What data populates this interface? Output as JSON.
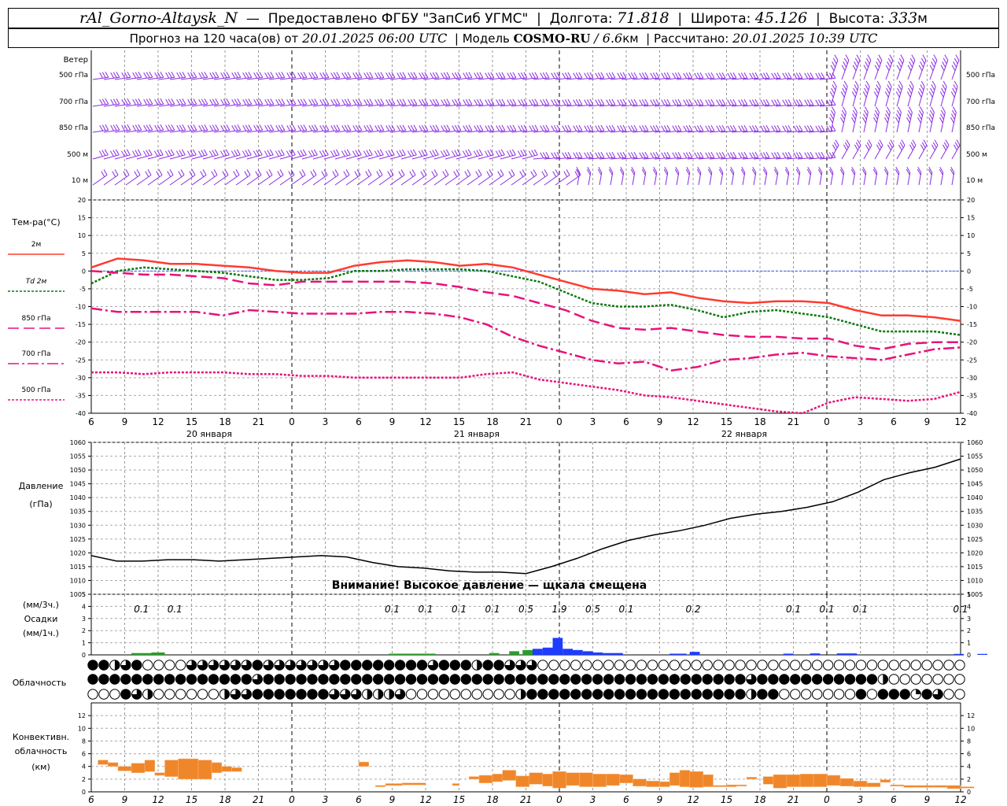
{
  "header": {
    "station": "rAl_Gorno-Altaysk_N",
    "provider": "Предоставлено ФГБУ \"ЗапСиб УГМС\"",
    "lon_label": "Долгота:",
    "lon_value": "71.818",
    "lat_label": "Широта:",
    "lat_value": "45.126",
    "alt_label": "Высота:",
    "alt_value": "333",
    "alt_unit": "м",
    "forecast_prefix": "Прогноз на 120 часа(ов) от",
    "forecast_time": "20.01.2025 06:00 UTC",
    "model_label": "Модель",
    "model_name": "COSMO-RU",
    "model_res": "/ 6.6",
    "model_res_unit": "км",
    "calc_label": "Рассчитано:",
    "calc_time": "20.01.2025 10:39 UTC"
  },
  "chart_data": [
    {
      "type": "barbs",
      "title": "Ветер",
      "levels": [
        "500 гПа",
        "700 гПа",
        "850 гПа",
        "500 м",
        "10  м"
      ],
      "color": "#8a2be2"
    },
    {
      "type": "line",
      "title": "Тем-ра(°C)",
      "ylim": [
        -40,
        20
      ],
      "yticks": [
        20,
        15,
        10,
        5,
        0,
        -5,
        -10,
        -15,
        -20,
        -25,
        -30,
        -35,
        -40
      ],
      "x_ticks": [
        "6",
        "9",
        "12",
        "15",
        "18",
        "21",
        "0",
        "3",
        "6",
        "9",
        "12",
        "15",
        "18",
        "21",
        "0",
        "3",
        "6",
        "9",
        "12",
        "15",
        "18",
        "21",
        "0",
        "3",
        "6",
        "9",
        "12"
      ],
      "day_labels": [
        "20 января",
        "21 января",
        "22 января"
      ],
      "series": [
        {
          "name": "2м",
          "color": "#ff3b30",
          "dash": "",
          "width": 2.5,
          "values": [
            1,
            3.5,
            3,
            2,
            2,
            1.5,
            1,
            0,
            -0.5,
            -0.5,
            1.5,
            2.5,
            3,
            2.5,
            1.5,
            2,
            1,
            -1,
            -3,
            -5,
            -5.5,
            -6.5,
            -6,
            -7.5,
            -8.5,
            -9,
            -8.5,
            -8.5,
            -9,
            -11,
            -12.5,
            -12.5,
            -13,
            -14
          ]
        },
        {
          "name": "Td  2м",
          "color": "#0a7a0a",
          "dash": "3,2",
          "width": 2.5,
          "values": [
            -3.5,
            0,
            1,
            0.5,
            0,
            -0.5,
            -1.5,
            -2.5,
            -2.5,
            -2,
            0,
            0,
            0.5,
            0.5,
            0.5,
            0,
            -1.5,
            -3,
            -6,
            -9,
            -10,
            -10,
            -9.5,
            -11,
            -13,
            -11.5,
            -11,
            -12,
            -13,
            -15,
            -17,
            -17,
            -17,
            -18
          ]
        },
        {
          "name": "850 гПа",
          "color": "#e8127a",
          "dash": "14,6",
          "width": 2.5,
          "values": [
            0,
            -0.5,
            -1,
            -1,
            -1.5,
            -2,
            -3.5,
            -4,
            -3,
            -3,
            -3,
            -3,
            -3,
            -3.5,
            -4.5,
            -6,
            -7,
            -9,
            -11,
            -14,
            -16,
            -16.5,
            -16,
            -17,
            -18,
            -18.5,
            -18.5,
            -19,
            -19,
            -21,
            -22,
            -20.5,
            -20,
            -20
          ]
        },
        {
          "name": "700 гПа",
          "color": "#e8127a",
          "dash": "14,4,3,4",
          "width": 2.5,
          "values": [
            -10.5,
            -11.5,
            -11.5,
            -11.5,
            -11.5,
            -12.5,
            -11,
            -11.5,
            -12,
            -12,
            -12,
            -11.5,
            -11.5,
            -12,
            -13,
            -15,
            -18.5,
            -21,
            -23,
            -25,
            -26,
            -25.5,
            -28,
            -27,
            -25,
            -24.5,
            -23.5,
            -23,
            -24,
            -24.5,
            -25,
            -23.5,
            -22,
            -21.5
          ]
        },
        {
          "name": "500 гПа",
          "color": "#e8127a",
          "dash": "3,2",
          "width": 2.5,
          "values": [
            -28.5,
            -28.5,
            -29,
            -28.5,
            -28.5,
            -28.5,
            -29,
            -29,
            -29.5,
            -29.5,
            -30,
            -30,
            -30,
            -30,
            -30,
            -29,
            -28.5,
            -30.5,
            -31.5,
            -32.5,
            -33.5,
            -35,
            -35.5,
            -36.5,
            -37.5,
            -38.5,
            -39.5,
            -40,
            -37,
            -35.5,
            -36,
            -36.5,
            -36,
            -34
          ]
        }
      ]
    },
    {
      "type": "line",
      "title": "Давление",
      "ylabel": "(гПа)",
      "ylim": [
        1005,
        1060
      ],
      "yticks": [
        1060,
        1055,
        1050,
        1045,
        1040,
        1035,
        1030,
        1025,
        1020,
        1015,
        1010,
        1005
      ],
      "series": [
        {
          "name": "",
          "color": "#000000",
          "values": [
            1019,
            1017,
            1017,
            1017.5,
            1017.5,
            1017,
            1017.5,
            1018,
            1018.5,
            1019,
            1018.5,
            1016.5,
            1015,
            1014.5,
            1013.5,
            1013,
            1013,
            1012.5,
            1015,
            1018,
            1021.5,
            1024.5,
            1026.5,
            1028,
            1030,
            1032.5,
            1034,
            1035,
            1036.5,
            1038.5,
            1042,
            1046.5,
            1049,
            1051,
            1054
          ]
        }
      ],
      "annotation": "Внимание! Высокое давление — щкала смещена"
    },
    {
      "type": "bar",
      "title": "Осадки",
      "ylabel_top": "(мм/3ч.)",
      "ylabel_bottom": "(мм/1ч.)",
      "ylim": [
        0,
        5
      ],
      "yticks": [
        5,
        4,
        3,
        2,
        1,
        0
      ],
      "labels": [
        {
          "x": 1.5,
          "text": "0.1"
        },
        {
          "x": 2.5,
          "text": "0.1"
        },
        {
          "x": 9,
          "text": "0.1"
        },
        {
          "x": 10,
          "text": "0.1"
        },
        {
          "x": 11,
          "text": "0.1"
        },
        {
          "x": 12,
          "text": "0.1"
        },
        {
          "x": 13,
          "text": "0.5"
        },
        {
          "x": 14,
          "text": "1.9"
        },
        {
          "x": 15,
          "text": "0.5"
        },
        {
          "x": 16,
          "text": "0.1"
        },
        {
          "x": 18,
          "text": "0.2"
        },
        {
          "x": 21,
          "text": "0.1"
        },
        {
          "x": 22,
          "text": "0.1"
        },
        {
          "x": 23,
          "text": "0.1"
        },
        {
          "x": 26,
          "text": "0.1"
        }
      ],
      "bars": [
        {
          "x": 1.2,
          "w": 0.6,
          "v": 0.15,
          "c": "#2a9d2a"
        },
        {
          "x": 1.8,
          "w": 0.4,
          "v": 0.2,
          "c": "#2a9d2a"
        },
        {
          "x": 8.9,
          "w": 1.4,
          "v": 0.1,
          "c": "#2a9d2a"
        },
        {
          "x": 11.9,
          "w": 0.3,
          "v": 0.15,
          "c": "#2a9d2a"
        },
        {
          "x": 12.5,
          "w": 0.3,
          "v": 0.3,
          "c": "#2a9d2a"
        },
        {
          "x": 12.9,
          "w": 0.3,
          "v": 0.4,
          "c": "#2a9d2a"
        },
        {
          "x": 13.2,
          "w": 0.3,
          "v": 0.5,
          "c": "#1e3cff"
        },
        {
          "x": 13.5,
          "w": 0.3,
          "v": 0.6,
          "c": "#1e3cff"
        },
        {
          "x": 13.8,
          "w": 0.3,
          "v": 1.4,
          "c": "#1e3cff"
        },
        {
          "x": 14.1,
          "w": 0.3,
          "v": 0.5,
          "c": "#1e3cff"
        },
        {
          "x": 14.4,
          "w": 0.3,
          "v": 0.4,
          "c": "#1e3cff"
        },
        {
          "x": 14.7,
          "w": 0.3,
          "v": 0.3,
          "c": "#1e3cff"
        },
        {
          "x": 15.0,
          "w": 0.3,
          "v": 0.2,
          "c": "#1e3cff"
        },
        {
          "x": 15.3,
          "w": 0.6,
          "v": 0.15,
          "c": "#1e3cff"
        },
        {
          "x": 17.9,
          "w": 0.3,
          "v": 0.25,
          "c": "#1e3cff"
        },
        {
          "x": 17.3,
          "w": 0.5,
          "v": 0.1,
          "c": "#1e3cff"
        },
        {
          "x": 20.7,
          "w": 0.3,
          "v": 0.1,
          "c": "#1e3cff"
        },
        {
          "x": 21.5,
          "w": 0.3,
          "v": 0.12,
          "c": "#1e3cff"
        },
        {
          "x": 22.3,
          "w": 0.6,
          "v": 0.12,
          "c": "#1e3cff"
        },
        {
          "x": 25.8,
          "w": 0.3,
          "v": 0.08,
          "c": "#1e3cff"
        },
        {
          "x": 26.5,
          "w": 0.3,
          "v": 0.08,
          "c": "#1e3cff"
        }
      ]
    },
    {
      "type": "symbols",
      "title": "Облачность",
      "codes": "0=clear, 1=quarter, 2=half, 3=three-quarter, 4=overcast",
      "rows": [
        "4423400003333334333333344444444344424433300000000000000000000000000000000000000000000000000000000000000000",
        "4444444444444443444444444444444444444444444444444444444444443444444444442000000000444000000034444444444000000000000000000000000000000000000000000000000000",
        "0004320000002334444444333222300000000002444444444444444444442440000000404441430004444444444444444444444444000000"
      ]
    },
    {
      "type": "bar",
      "title": "Конвективн. облачность",
      "ylabel": "(км)",
      "ylim": [
        0,
        14
      ],
      "yticks": [
        12,
        10,
        8,
        6,
        4,
        2,
        0
      ],
      "color": "#f0862a",
      "segments": [
        [
          0.2,
          0.5,
          4.3,
          5.0
        ],
        [
          0.5,
          0.8,
          4.0,
          4.6
        ],
        [
          0.8,
          1.2,
          3.3,
          4.0
        ],
        [
          1.2,
          1.6,
          3.0,
          4.5
        ],
        [
          1.6,
          1.9,
          3.2,
          5.0
        ],
        [
          1.9,
          2.2,
          2.6,
          3.0
        ],
        [
          2.2,
          2.6,
          2.4,
          5.0
        ],
        [
          2.6,
          3.2,
          2.0,
          5.2
        ],
        [
          3.2,
          3.6,
          2.0,
          5.0
        ],
        [
          3.6,
          3.9,
          3.0,
          4.6
        ],
        [
          3.9,
          4.2,
          3.2,
          4.0
        ],
        [
          4.2,
          4.5,
          3.2,
          3.8
        ],
        [
          8.0,
          8.3,
          4.0,
          4.7
        ],
        [
          8.5,
          8.8,
          0.8,
          1.0
        ],
        [
          8.8,
          9.3,
          1.0,
          1.3
        ],
        [
          9.3,
          10.0,
          1.1,
          1.4
        ],
        [
          10.8,
          11.0,
          1.0,
          1.3
        ],
        [
          11.3,
          11.6,
          2.0,
          2.4
        ],
        [
          11.6,
          12.0,
          1.4,
          2.6
        ],
        [
          12.0,
          12.3,
          1.6,
          2.8
        ],
        [
          12.3,
          12.7,
          1.8,
          3.4
        ],
        [
          12.7,
          13.1,
          0.8,
          2.5
        ],
        [
          13.1,
          13.5,
          1.2,
          3.0
        ],
        [
          13.5,
          13.8,
          0.9,
          2.8
        ],
        [
          13.8,
          14.2,
          0.6,
          3.2
        ],
        [
          14.2,
          14.6,
          1.0,
          3.0
        ],
        [
          14.6,
          15.0,
          0.8,
          3.0
        ],
        [
          15.0,
          15.4,
          0.8,
          2.8
        ],
        [
          15.4,
          15.8,
          1.0,
          2.8
        ],
        [
          15.8,
          16.2,
          1.4,
          2.7
        ],
        [
          16.2,
          16.6,
          0.9,
          2.0
        ],
        [
          16.6,
          17.0,
          0.8,
          1.7
        ],
        [
          17.0,
          17.3,
          0.8,
          1.6
        ],
        [
          17.3,
          17.6,
          1.0,
          3.0
        ],
        [
          17.6,
          17.9,
          0.8,
          3.4
        ],
        [
          17.9,
          18.3,
          0.7,
          3.2
        ],
        [
          18.3,
          18.6,
          0.8,
          2.7
        ],
        [
          18.6,
          19.0,
          0.8,
          1.0
        ],
        [
          19.0,
          19.3,
          0.8,
          1.1
        ],
        [
          19.3,
          19.6,
          0.9,
          1.1
        ],
        [
          19.6,
          19.9,
          2.0,
          2.3
        ],
        [
          20.1,
          20.4,
          1.2,
          2.4
        ],
        [
          20.4,
          20.8,
          0.6,
          2.7
        ],
        [
          20.8,
          21.2,
          0.8,
          2.7
        ],
        [
          21.2,
          21.6,
          0.8,
          2.8
        ],
        [
          21.6,
          22.0,
          0.8,
          2.8
        ],
        [
          22.0,
          22.4,
          1.0,
          2.6
        ],
        [
          22.4,
          22.8,
          0.9,
          2.1
        ],
        [
          22.8,
          23.2,
          0.8,
          1.7
        ],
        [
          23.2,
          23.6,
          0.8,
          1.4
        ],
        [
          23.6,
          23.9,
          1.5,
          1.9
        ],
        [
          23.9,
          24.3,
          0.9,
          1.1
        ],
        [
          24.3,
          24.7,
          0.7,
          1.0
        ],
        [
          24.7,
          25.2,
          0.7,
          1.0
        ],
        [
          25.2,
          25.6,
          0.7,
          1.0
        ],
        [
          25.6,
          26.0,
          0.5,
          1.0
        ],
        [
          26.0,
          26.4,
          0.6,
          0.8
        ]
      ]
    }
  ],
  "x_axis_bottom": [
    "6",
    "9",
    "12",
    "15",
    "18",
    "21",
    "0",
    "3",
    "6",
    "9",
    "12",
    "15",
    "18",
    "21",
    "0",
    "3",
    "6",
    "9",
    "12",
    "15",
    "18",
    "21",
    "0",
    "3",
    "6",
    "9",
    "12"
  ]
}
